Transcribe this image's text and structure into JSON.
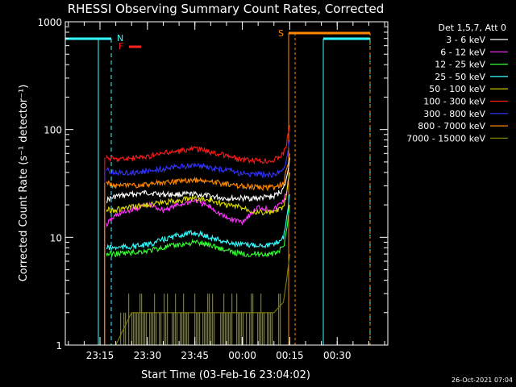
{
  "chart_data": {
    "type": "line",
    "title": "RHESSI Observing Summary Count Rates, Corrected",
    "xlabel": "Start Time (03-Feb-16 23:04:02)",
    "ylabel": "Corrected Count Rate (s⁻¹ detector⁻¹)",
    "xlim": [
      "23:04:02",
      "00:46:00"
    ],
    "ylim": [
      1,
      1000
    ],
    "yscale": "log",
    "x_ticks": [
      "23:15",
      "23:30",
      "23:45",
      "00:00",
      "00:15",
      "00:30"
    ],
    "y_ticks": [
      "1",
      "10",
      "100",
      "1000"
    ],
    "legend_title": "Det 1,5,7, Att 0",
    "legend_position": "right",
    "series": [
      {
        "name": "3 - 6 keV",
        "color": "#ffffff",
        "x": [
          "23:17",
          "23:20",
          "23:25",
          "23:30",
          "23:35",
          "23:40",
          "23:45",
          "23:50",
          "23:55",
          "00:00",
          "00:05",
          "00:10",
          "00:13",
          "00:14",
          "00:15"
        ],
        "values": [
          22,
          24,
          25,
          26,
          25,
          25,
          25,
          24,
          23,
          23,
          23,
          24,
          28,
          35,
          55
        ]
      },
      {
        "name": "6 - 12 keV",
        "color": "#ff33ff",
        "x": [
          "23:17",
          "23:20",
          "23:25",
          "23:30",
          "23:35",
          "23:40",
          "23:45",
          "23:50",
          "23:55",
          "00:00",
          "00:05",
          "00:10",
          "00:13",
          "00:14",
          "00:15"
        ],
        "values": [
          13,
          16,
          18,
          20,
          18,
          20,
          22,
          19,
          15,
          14,
          19,
          18,
          22,
          26,
          40
        ]
      },
      {
        "name": "12 - 25 keV",
        "color": "#33ff33",
        "x": [
          "23:17",
          "23:20",
          "23:25",
          "23:30",
          "23:35",
          "23:40",
          "23:45",
          "23:50",
          "23:55",
          "00:00",
          "00:05",
          "00:10",
          "00:13",
          "00:14",
          "00:15"
        ],
        "values": [
          7,
          7,
          7.2,
          7.5,
          8,
          8.5,
          9,
          8.5,
          7.5,
          7,
          7,
          7,
          8,
          12,
          20
        ]
      },
      {
        "name": "25 - 50 keV",
        "color": "#33ffff",
        "x": [
          "23:17",
          "23:20",
          "23:25",
          "23:30",
          "23:35",
          "23:40",
          "23:45",
          "23:50",
          "23:55",
          "00:00",
          "00:05",
          "00:10",
          "00:13",
          "00:14",
          "00:15"
        ],
        "values": [
          8,
          8,
          8.2,
          8.5,
          9.5,
          10.5,
          11,
          10,
          9,
          8.5,
          8.5,
          8.5,
          10,
          15,
          25
        ]
      },
      {
        "name": "50 - 100 keV",
        "color": "#dddd00",
        "x": [
          "23:17",
          "23:20",
          "23:25",
          "23:30",
          "23:35",
          "23:40",
          "23:45",
          "23:50",
          "23:55",
          "00:00",
          "00:05",
          "00:10",
          "00:13",
          "00:14",
          "00:15"
        ],
        "values": [
          18,
          18,
          19,
          20,
          21,
          22,
          23,
          22,
          20,
          19,
          17,
          17,
          19,
          25,
          40
        ]
      },
      {
        "name": "100 - 300 keV",
        "color": "#ff1a1a",
        "x": [
          "23:17",
          "23:20",
          "23:25",
          "23:30",
          "23:35",
          "23:40",
          "23:45",
          "23:50",
          "23:55",
          "00:00",
          "00:05",
          "00:10",
          "00:13",
          "00:14",
          "00:15"
        ],
        "values": [
          55,
          53,
          54,
          56,
          60,
          63,
          67,
          62,
          57,
          52,
          51,
          52,
          60,
          75,
          110
        ]
      },
      {
        "name": "300 - 800 keV",
        "color": "#3333ff",
        "x": [
          "23:17",
          "23:20",
          "23:25",
          "23:30",
          "23:35",
          "23:40",
          "23:45",
          "23:50",
          "23:55",
          "00:00",
          "00:05",
          "00:10",
          "00:13",
          "00:14",
          "00:15"
        ],
        "values": [
          42,
          40,
          40,
          41,
          43,
          45,
          47,
          44,
          42,
          39,
          38,
          38,
          42,
          55,
          80
        ]
      },
      {
        "name": "800 - 7000 keV",
        "color": "#ff8800",
        "x": [
          "23:17",
          "23:20",
          "23:25",
          "23:30",
          "23:35",
          "23:40",
          "23:45",
          "23:50",
          "23:55",
          "00:00",
          "00:05",
          "00:10",
          "00:13",
          "00:14",
          "00:15"
        ],
        "values": [
          32,
          30,
          30,
          31,
          32,
          33,
          34,
          33,
          31,
          30,
          29,
          29,
          32,
          42,
          60
        ]
      },
      {
        "name": "7000 - 15000 keV",
        "color": "#808000",
        "x": [
          "23:17",
          "23:20",
          "23:25",
          "23:30",
          "23:35",
          "23:40",
          "23:45",
          "23:50",
          "23:55",
          "00:00",
          "00:05",
          "00:10",
          "00:13",
          "00:14",
          "00:15"
        ],
        "values": [
          1,
          1,
          2,
          2,
          2,
          2,
          2,
          2,
          2,
          2,
          2,
          2,
          2.5,
          4,
          7
        ]
      }
    ],
    "flags": [
      {
        "label": "N",
        "color": "#33ffff"
      },
      {
        "label": "F",
        "color": "#ff2222"
      },
      {
        "label": "S",
        "color": "#ff8800"
      }
    ],
    "timestamp": "26-Oct-2021 07:04"
  }
}
